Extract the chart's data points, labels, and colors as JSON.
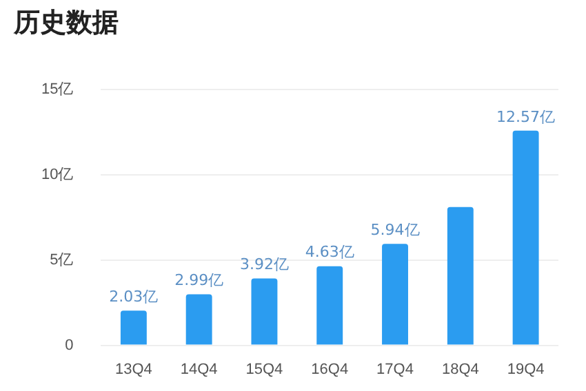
{
  "chart_data": {
    "type": "bar",
    "title": "历史数据",
    "categories": [
      "13Q4",
      "14Q4",
      "15Q4",
      "16Q4",
      "17Q4",
      "18Q4",
      "19Q4"
    ],
    "values": [
      2.03,
      2.99,
      3.92,
      4.63,
      5.94,
      8.1,
      12.57
    ],
    "value_labels": [
      "2.03亿",
      "2.99亿",
      "3.92亿",
      "4.63亿",
      "5.94亿",
      null,
      "12.57亿"
    ],
    "color": "#2b9cf0",
    "ylim": [
      0,
      15
    ],
    "yticks": [
      {
        "value": 0,
        "label": "0"
      },
      {
        "value": 5,
        "label": "5亿"
      },
      {
        "value": 10,
        "label": "10亿"
      },
      {
        "value": 15,
        "label": "15亿"
      }
    ],
    "grid": "y",
    "legend": false
  }
}
